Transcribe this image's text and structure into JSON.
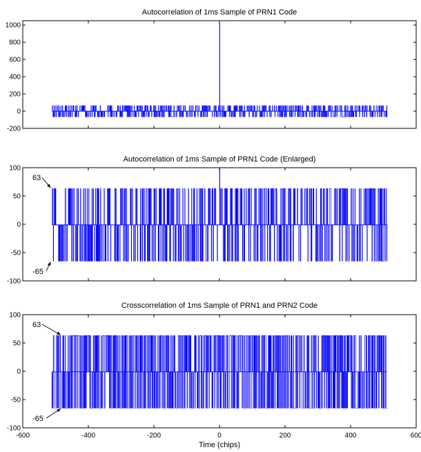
{
  "chart_data": [
    {
      "type": "line",
      "title": "Autocorrelation of 1ms Sample of PRN1 Code",
      "xlabel": "",
      "ylabel": "",
      "xlim": [
        -600,
        600
      ],
      "ylim": [
        -200,
        1050
      ],
      "yticks": [
        -200,
        0,
        200,
        400,
        600,
        800,
        1000
      ],
      "xticks": [],
      "grid": false,
      "series": [
        {
          "values_description_free": true,
          "x_range": [
            -511,
            511
          ],
          "levels": [
            -65,
            -1,
            63
          ],
          "peak": {
            "x": 0,
            "y": 1023
          },
          "color": "#0000ff"
        }
      ],
      "annotations": []
    },
    {
      "type": "line",
      "title": "Autocorrelation of 1ms Sample of PRN1 Code (Enlarged)",
      "xlabel": "",
      "ylabel": "",
      "xlim": [
        -600,
        600
      ],
      "ylim": [
        -100,
        100
      ],
      "yticks": [
        -100,
        -50,
        0,
        50,
        100
      ],
      "xticks": [],
      "grid": false,
      "series": [
        {
          "x_range": [
            -511,
            511
          ],
          "levels": [
            -65,
            -1,
            63
          ],
          "peak": {
            "x": 0,
            "y": 1023
          },
          "color": "#0000ff"
        }
      ],
      "annotations": [
        {
          "text": "63",
          "x": -511,
          "y": 63
        },
        {
          "text": "-65",
          "x": -511,
          "y": -65
        }
      ]
    },
    {
      "type": "line",
      "title": "Crosscorrelation of 1ms Sample of PRN1 and PRN2 Code",
      "xlabel": "Time (chips)",
      "ylabel": "",
      "xlim": [
        -600,
        600
      ],
      "ylim": [
        -100,
        100
      ],
      "yticks": [
        -100,
        -50,
        0,
        50,
        100
      ],
      "xticks": [
        -600,
        -400,
        -200,
        0,
        200,
        400,
        600
      ],
      "grid": false,
      "series": [
        {
          "x_range": [
            -511,
            511
          ],
          "levels": [
            -65,
            -1,
            63
          ],
          "color": "#0000ff"
        }
      ],
      "annotations": [
        {
          "text": "63",
          "x": -480,
          "y": 63
        },
        {
          "text": "-65",
          "x": -480,
          "y": -65
        }
      ]
    }
  ]
}
